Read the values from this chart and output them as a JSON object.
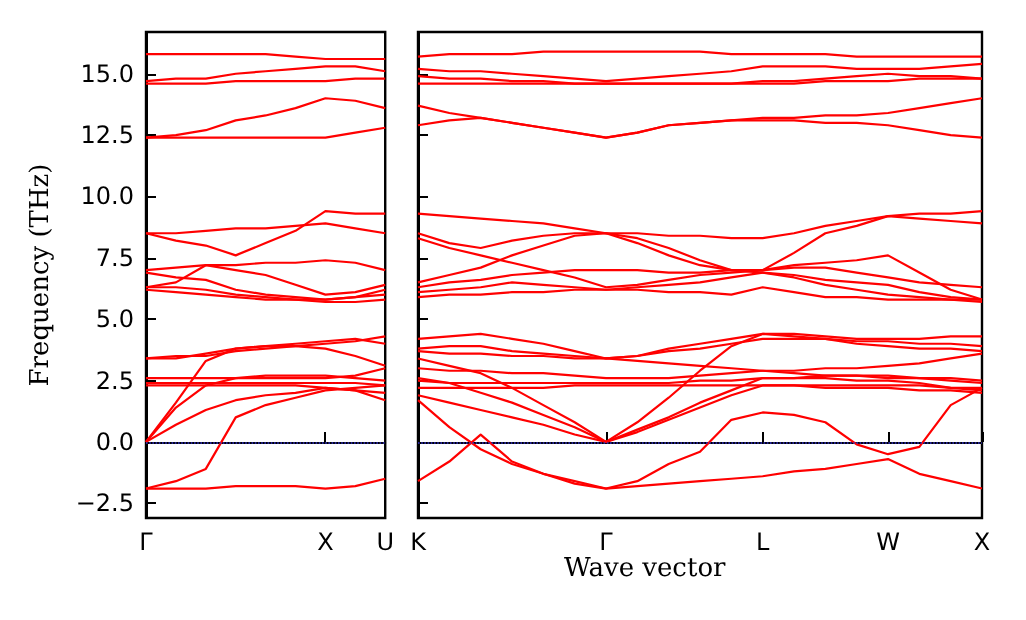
{
  "chart_data": [
    {
      "type": "line",
      "ylabel": "Frequency (THz)",
      "ylim": [
        -3.1,
        16.7
      ],
      "categories": [
        "Γ",
        null,
        null,
        null,
        null,
        null,
        "X",
        null,
        "U"
      ],
      "yticks": [
        {
          "value": -2.5,
          "label": "−2.5"
        },
        {
          "value": 0,
          "label": "0.0"
        },
        {
          "value": 2.5,
          "label": "2.5"
        },
        {
          "value": 5,
          "label": "5.0"
        },
        {
          "value": 7.5,
          "label": "7.5"
        },
        {
          "value": 10,
          "label": "10.0"
        },
        {
          "value": 12.5,
          "label": "12.5"
        },
        {
          "value": 15,
          "label": "15.0"
        }
      ],
      "ref_lines": [
        {
          "axis": "y",
          "value": 0,
          "color": "#3333cc",
          "line_style": "dotted"
        }
      ],
      "series": [
        {
          "color": "#ff0000",
          "values": [
            -1.9,
            -1.9,
            -1.9,
            -1.8,
            -1.8,
            -1.8,
            -1.9,
            -1.8,
            -1.5
          ]
        },
        {
          "color": "#ff0000",
          "values": [
            -1.9,
            -1.6,
            -1.1,
            1.0,
            1.5,
            1.8,
            2.1,
            2.2,
            2.3
          ]
        },
        {
          "color": "#ff0000",
          "values": [
            0,
            0.7,
            1.3,
            1.7,
            1.9,
            2.0,
            2.2,
            2.1,
            1.7
          ]
        },
        {
          "color": "#ff0000",
          "values": [
            0,
            1.4,
            2.3,
            2.6,
            2.7,
            2.7,
            2.7,
            2.6,
            2.5
          ]
        },
        {
          "color": "#ff0000",
          "values": [
            0,
            1.6,
            3.3,
            3.8,
            3.9,
            3.9,
            3.8,
            3.5,
            3.1
          ]
        },
        {
          "color": "#ff0000",
          "values": [
            2.3,
            2.3,
            2.3,
            2.3,
            2.3,
            2.3,
            2.2,
            2.1,
            2.0
          ]
        },
        {
          "color": "#ff0000",
          "values": [
            2.4,
            2.4,
            2.4,
            2.4,
            2.4,
            2.4,
            2.4,
            2.4,
            2.3
          ]
        },
        {
          "color": "#ff0000",
          "values": [
            2.6,
            2.6,
            2.6,
            2.6,
            2.6,
            2.6,
            2.6,
            2.7,
            3.0
          ]
        },
        {
          "color": "#ff0000",
          "values": [
            3.4,
            3.5,
            3.5,
            3.7,
            3.8,
            3.9,
            4.0,
            4.1,
            4.3
          ]
        },
        {
          "color": "#ff0000",
          "values": [
            3.4,
            3.4,
            3.6,
            3.8,
            3.9,
            4.0,
            4.1,
            4.2,
            4.0
          ]
        },
        {
          "color": "#ff0000",
          "values": [
            6.2,
            6.1,
            6.0,
            5.9,
            5.8,
            5.8,
            5.7,
            5.7,
            5.8
          ]
        },
        {
          "color": "#ff0000",
          "values": [
            6.3,
            6.3,
            6.2,
            6.0,
            5.9,
            5.8,
            5.8,
            5.9,
            6.2
          ]
        },
        {
          "color": "#ff0000",
          "values": [
            6.9,
            6.7,
            6.6,
            6.2,
            6.0,
            5.9,
            5.8,
            5.9,
            6.0
          ]
        },
        {
          "color": "#ff0000",
          "values": [
            7.0,
            7.1,
            7.2,
            7.2,
            7.3,
            7.3,
            7.4,
            7.3,
            7.0
          ]
        },
        {
          "color": "#ff0000",
          "values": [
            6.3,
            6.5,
            7.2,
            7.0,
            6.8,
            6.4,
            6.0,
            6.1,
            6.4
          ]
        },
        {
          "color": "#ff0000",
          "values": [
            8.5,
            8.2,
            8.0,
            7.6,
            8.1,
            8.6,
            9.4,
            9.3,
            9.3
          ]
        },
        {
          "color": "#ff0000",
          "values": [
            8.5,
            8.5,
            8.6,
            8.7,
            8.7,
            8.8,
            8.9,
            8.7,
            8.5
          ]
        },
        {
          "color": "#ff0000",
          "values": [
            12.4,
            12.4,
            12.4,
            12.4,
            12.4,
            12.4,
            12.4,
            12.6,
            12.8
          ]
        },
        {
          "color": "#ff0000",
          "values": [
            12.4,
            12.5,
            12.7,
            13.1,
            13.3,
            13.6,
            14.0,
            13.9,
            13.6
          ]
        },
        {
          "color": "#ff0000",
          "values": [
            14.6,
            14.6,
            14.6,
            14.7,
            14.7,
            14.7,
            14.7,
            14.8,
            14.8
          ]
        },
        {
          "color": "#ff0000",
          "values": [
            14.7,
            14.8,
            14.8,
            15.0,
            15.1,
            15.2,
            15.3,
            15.3,
            15.1
          ]
        },
        {
          "color": "#ff0000",
          "values": [
            15.8,
            15.8,
            15.8,
            15.8,
            15.8,
            15.7,
            15.6,
            15.6,
            15.6
          ]
        }
      ]
    },
    {
      "type": "line",
      "xlabel": "Wave vector",
      "tick_labels": "x",
      "ylim": [
        -3.1,
        16.7
      ],
      "categories": [
        "K",
        null,
        null,
        null,
        null,
        null,
        "Γ",
        null,
        null,
        null,
        null,
        "L",
        null,
        null,
        null,
        "W",
        null,
        null,
        "X"
      ],
      "yticks": [
        {
          "value": -2.5,
          "label": null
        },
        {
          "value": 0,
          "label": null
        },
        {
          "value": 2.5,
          "label": null
        },
        {
          "value": 5,
          "label": null
        },
        {
          "value": 7.5,
          "label": null
        },
        {
          "value": 10,
          "label": null
        },
        {
          "value": 12.5,
          "label": null
        },
        {
          "value": 15,
          "label": null
        }
      ],
      "ref_lines": [
        {
          "axis": "y",
          "value": 0,
          "color": "#3333cc",
          "line_style": "dotted"
        }
      ],
      "series": [
        {
          "color": "#ff0000",
          "values": [
            1.7,
            0.6,
            -0.3,
            -0.9,
            -1.3,
            -1.6,
            -1.9,
            -1.8,
            -1.7,
            -1.6,
            -1.5,
            -1.4,
            -1.2,
            -1.1,
            -0.9,
            -0.7,
            -1.3,
            -1.6,
            -1.9
          ]
        },
        {
          "color": "#ff0000",
          "values": [
            -1.6,
            -0.8,
            0.3,
            -0.8,
            -1.3,
            -1.7,
            -1.9,
            -1.6,
            -0.9,
            -0.4,
            0.9,
            1.2,
            1.1,
            0.8,
            -0.1,
            -0.5,
            -0.2,
            1.5,
            2.2
          ]
        },
        {
          "color": "#ff0000",
          "values": [
            1.9,
            1.6,
            1.3,
            1.0,
            0.7,
            0.3,
            0,
            0.4,
            0.9,
            1.4,
            1.9,
            2.3,
            2.3,
            2.2,
            2.2,
            2.2,
            2.1,
            2.1,
            2.0
          ]
        },
        {
          "color": "#ff0000",
          "values": [
            2.6,
            2.4,
            2.0,
            1.6,
            1.1,
            0.6,
            0,
            0.5,
            1.0,
            1.6,
            2.1,
            2.6,
            2.6,
            2.6,
            2.5,
            2.5,
            2.4,
            2.2,
            2.1
          ]
        },
        {
          "color": "#ff0000",
          "values": [
            3.4,
            3.1,
            2.8,
            2.2,
            1.5,
            0.8,
            0,
            0.8,
            1.8,
            2.9,
            3.9,
            4.4,
            4.3,
            4.2,
            4.0,
            3.9,
            3.8,
            3.8,
            3.7
          ]
        },
        {
          "color": "#ff0000",
          "values": [
            2.2,
            2.2,
            2.2,
            2.2,
            2.2,
            2.3,
            2.3,
            2.3,
            2.3,
            2.3,
            2.3,
            2.3,
            2.3,
            2.3,
            2.3,
            2.3,
            2.3,
            2.2,
            2.2
          ]
        },
        {
          "color": "#ff0000",
          "values": [
            2.5,
            2.4,
            2.4,
            2.4,
            2.4,
            2.4,
            2.4,
            2.4,
            2.4,
            2.5,
            2.5,
            2.6,
            2.6,
            2.7,
            2.7,
            2.7,
            2.6,
            2.5,
            2.4
          ]
        },
        {
          "color": "#ff0000",
          "values": [
            3.0,
            2.9,
            2.9,
            2.8,
            2.8,
            2.7,
            2.6,
            2.6,
            2.6,
            2.7,
            2.8,
            2.9,
            2.9,
            3.0,
            3.0,
            3.1,
            3.2,
            3.4,
            3.6
          ]
        },
        {
          "color": "#ff0000",
          "values": [
            3.7,
            3.6,
            3.6,
            3.5,
            3.5,
            3.4,
            3.4,
            3.5,
            3.7,
            3.8,
            4.0,
            4.2,
            4.2,
            4.2,
            4.1,
            4.1,
            4.0,
            4.0,
            3.9
          ]
        },
        {
          "color": "#ff0000",
          "values": [
            4.2,
            4.3,
            4.4,
            4.2,
            4.0,
            3.7,
            3.4,
            3.5,
            3.8,
            4.0,
            4.2,
            4.4,
            4.4,
            4.3,
            4.2,
            4.2,
            4.2,
            4.3,
            4.3
          ]
        },
        {
          "color": "#ff0000",
          "values": [
            3.8,
            3.9,
            3.9,
            3.7,
            3.6,
            3.5,
            3.4,
            3.3,
            3.2,
            3.1,
            3.0,
            2.9,
            2.8,
            2.7,
            2.7,
            2.6,
            2.6,
            2.6,
            2.5
          ]
        },
        {
          "color": "#ff0000",
          "values": [
            5.9,
            6.0,
            6.0,
            6.1,
            6.1,
            6.2,
            6.2,
            6.2,
            6.1,
            6.1,
            6.0,
            6.3,
            6.1,
            5.9,
            5.9,
            5.8,
            5.8,
            5.8,
            5.8
          ]
        },
        {
          "color": "#ff0000",
          "values": [
            6.1,
            6.2,
            6.3,
            6.5,
            6.4,
            6.3,
            6.2,
            6.3,
            6.4,
            6.5,
            6.7,
            6.9,
            6.7,
            6.4,
            6.2,
            6.0,
            5.9,
            5.8,
            5.7
          ]
        },
        {
          "color": "#ff0000",
          "values": [
            6.3,
            6.5,
            6.6,
            6.8,
            6.9,
            7.0,
            7.0,
            7.0,
            6.9,
            6.9,
            7.0,
            7.0,
            7.1,
            7.1,
            6.9,
            6.7,
            6.5,
            6.4,
            6.3
          ]
        },
        {
          "color": "#ff0000",
          "values": [
            6.5,
            6.8,
            7.1,
            7.6,
            8.0,
            8.4,
            8.5,
            8.3,
            7.9,
            7.4,
            7.0,
            6.9,
            6.8,
            6.6,
            6.5,
            6.4,
            6.1,
            5.9,
            5.8
          ]
        },
        {
          "color": "#ff0000",
          "values": [
            8.3,
            7.9,
            7.6,
            7.3,
            7.0,
            6.7,
            6.3,
            6.4,
            6.6,
            6.8,
            6.9,
            7.0,
            7.2,
            7.3,
            7.4,
            7.6,
            6.9,
            6.2,
            5.8
          ]
        },
        {
          "color": "#ff0000",
          "values": [
            8.5,
            8.1,
            7.9,
            8.2,
            8.4,
            8.5,
            8.5,
            8.1,
            7.6,
            7.2,
            7.0,
            7.0,
            7.7,
            8.5,
            8.8,
            9.2,
            9.1,
            9.0,
            8.9
          ]
        },
        {
          "color": "#ff0000",
          "values": [
            9.3,
            9.2,
            9.1,
            9.0,
            8.9,
            8.7,
            8.5,
            8.5,
            8.4,
            8.4,
            8.3,
            8.3,
            8.5,
            8.8,
            9.0,
            9.2,
            9.3,
            9.3,
            9.4
          ]
        },
        {
          "color": "#ff0000",
          "values": [
            13.7,
            13.4,
            13.2,
            13.0,
            12.8,
            12.6,
            12.4,
            12.6,
            12.9,
            13.0,
            13.1,
            13.2,
            13.2,
            13.3,
            13.3,
            13.4,
            13.6,
            13.8,
            14.0
          ]
        },
        {
          "color": "#ff0000",
          "values": [
            12.9,
            13.1,
            13.2,
            13.0,
            12.8,
            12.6,
            12.4,
            12.6,
            12.9,
            13.0,
            13.1,
            13.1,
            13.1,
            13.0,
            13.0,
            12.9,
            12.7,
            12.5,
            12.4
          ]
        },
        {
          "color": "#ff0000",
          "values": [
            14.6,
            14.6,
            14.6,
            14.6,
            14.6,
            14.6,
            14.6,
            14.6,
            14.6,
            14.6,
            14.6,
            14.6,
            14.6,
            14.7,
            14.7,
            14.7,
            14.8,
            14.8,
            14.8
          ]
        },
        {
          "color": "#ff0000",
          "values": [
            14.9,
            14.8,
            14.8,
            14.7,
            14.7,
            14.6,
            14.6,
            14.6,
            14.6,
            14.6,
            14.6,
            14.7,
            14.7,
            14.8,
            14.9,
            15.0,
            14.9,
            14.9,
            14.8
          ]
        },
        {
          "color": "#ff0000",
          "values": [
            15.2,
            15.1,
            15.1,
            15.0,
            14.9,
            14.8,
            14.7,
            14.8,
            14.9,
            15.0,
            15.1,
            15.3,
            15.3,
            15.3,
            15.2,
            15.2,
            15.2,
            15.3,
            15.4
          ]
        },
        {
          "color": "#ff0000",
          "values": [
            15.7,
            15.8,
            15.8,
            15.8,
            15.9,
            15.9,
            15.9,
            15.9,
            15.9,
            15.9,
            15.8,
            15.8,
            15.8,
            15.8,
            15.7,
            15.7,
            15.7,
            15.7,
            15.7
          ]
        }
      ]
    }
  ]
}
